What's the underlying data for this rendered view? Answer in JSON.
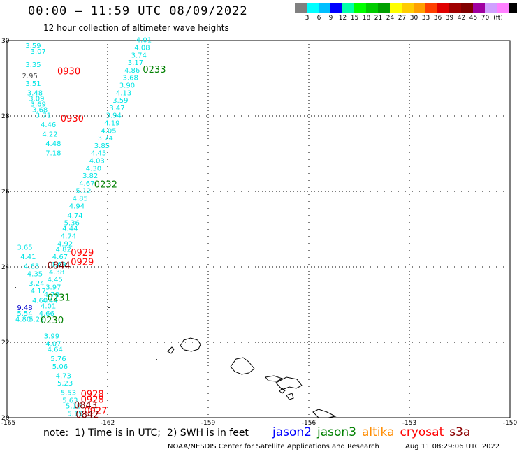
{
  "header": {
    "title": "00:00 – 11:59 UTC 08/09/2022",
    "subtitle": "12 hour collection of altimeter wave heights"
  },
  "legend": {
    "colors": [
      "#808080",
      "#00ffff",
      "#00bfff",
      "#0000ff",
      "#00ffaa",
      "#00ff00",
      "#00cc00",
      "#00a000",
      "#ffff00",
      "#ffcc00",
      "#ffa000",
      "#ff4000",
      "#e00000",
      "#a00000",
      "#800000",
      "#a000a0",
      "#d0a0ff",
      "#ff80ff",
      "#000000"
    ],
    "labels": [
      "3",
      "6",
      "9",
      "12",
      "15",
      "18",
      "21",
      "24",
      "27",
      "30",
      "33",
      "36",
      "39",
      "42",
      "45",
      "70",
      "(ft)"
    ]
  },
  "footer": {
    "note": "note:  1) Time is in UTC;  2) SWH is in feet",
    "satellites": [
      {
        "name": "jason2",
        "color": "#0000ff"
      },
      {
        "name": "jason3",
        "color": "#008000"
      },
      {
        "name": "altika",
        "color": "#ff8c00"
      },
      {
        "name": "cryosat",
        "color": "#ff0000"
      },
      {
        "name": "s3a",
        "color": "#8b0000"
      }
    ],
    "credit": "NOAA/NESDIS Center for Satellite Applications and Research",
    "timestamp": "Aug 11 08:29:06 UTC 2022"
  },
  "chart_data": {
    "type": "scatter",
    "xlim": [
      -165,
      -150
    ],
    "ylim": [
      20,
      30
    ],
    "xticks": [
      "-165",
      "-162",
      "-159",
      "-156",
      "-153",
      "-150"
    ],
    "yticks": [
      "20",
      "22",
      "24",
      "26",
      "28",
      "30"
    ],
    "grid": true,
    "track_jason3_0233": {
      "color": "#00e5e5",
      "lon": [
        -161.15,
        -161.2,
        -161.3,
        -161.4,
        -161.5,
        -161.55,
        -161.65,
        -161.75,
        -161.85,
        -161.95,
        -162.05,
        -162.1,
        -162.2,
        -162.3,
        -162.4,
        -162.5,
        -162.55,
        -162.65,
        -162.75,
        -162.85,
        -162.95,
        -163.05,
        -163.15
      ],
      "lat": [
        29.95,
        29.75,
        29.55,
        29.35,
        29.15,
        28.95,
        28.75,
        28.55,
        28.35,
        28.15,
        27.95,
        27.75,
        27.55,
        27.35,
        27.15,
        26.95,
        26.75,
        26.55,
        26.35,
        26.15,
        25.95,
        25.75,
        25.55
      ],
      "values": [
        "4.01",
        "4.08",
        "3.74",
        "3.17",
        "4.86",
        "3.68",
        "3.90",
        "4.13",
        "3.59",
        "3.47",
        "3.94",
        "4.19",
        "4.05",
        "3.74",
        "3.85",
        "4.45",
        "4.03",
        "4.30",
        "3.82",
        "4.67",
        "5.12",
        "4.85",
        "4.94"
      ]
    },
    "track_jason3_0231": {
      "color": "#00e5e5",
      "lon": [
        -163.2,
        -163.3,
        -163.35,
        -163.4,
        -163.5,
        -163.55,
        -163.65,
        -163.7,
        -163.75,
        -163.8,
        -163.85,
        -163.9,
        -163.95,
        -164.0,
        -164.05
      ],
      "lat": [
        25.3,
        25.1,
        24.95,
        24.75,
        24.55,
        24.4,
        24.2,
        24.0,
        23.8,
        23.6,
        23.4,
        23.2,
        23.05,
        22.9,
        22.7
      ],
      "values": [
        "4.74",
        "5.36",
        "4.44",
        "4.74",
        "4.92",
        "4.82",
        "4.67",
        "4.69",
        "4.38",
        "4.45",
        "3.97",
        "4.78",
        "4.44",
        "4.01",
        "4.66"
      ]
    },
    "track_jason3_0230": {
      "color": "#00e5e5",
      "lon": [
        -163.9,
        -163.85,
        -163.8,
        -163.7,
        -163.65,
        -163.55,
        -163.5,
        -163.4,
        -163.35,
        -163.25,
        -163.2
      ],
      "lat": [
        22.1,
        21.9,
        21.75,
        21.5,
        21.3,
        21.05,
        20.85,
        20.6,
        20.4,
        20.25,
        20.05
      ],
      "values": [
        "3.99",
        "4.07",
        "4.64",
        "5.76",
        "5.06",
        "4.73",
        "5.23",
        "5.53",
        "5.63",
        "5.10",
        "5.19"
      ]
    },
    "track_west": {
      "color": "#00e5e5",
      "lon": [
        -164.45,
        -164.3,
        -164.45,
        -164.45,
        -164.4,
        -164.35,
        -164.3,
        -164.25,
        -164.15,
        -164.0,
        -163.95,
        -163.85,
        -163.85,
        -164.7,
        -164.6,
        -164.5,
        -164.4,
        -164.35,
        -164.3,
        -164.25,
        -164.35
      ],
      "lat": [
        29.8,
        29.65,
        29.3,
        28.8,
        28.55,
        28.4,
        28.25,
        28.1,
        27.95,
        27.7,
        27.45,
        27.2,
        26.95,
        24.45,
        24.2,
        23.95,
        23.75,
        23.5,
        23.3,
        23.05,
        22.55
      ],
      "values": [
        "3.59",
        "3.07",
        "3.35",
        "3.51",
        "3.48",
        "3.09",
        "3.69",
        "3.68",
        "3.71",
        "4.46",
        "4.22",
        "4.48",
        "7.18",
        "3.65",
        "4.41",
        "4.63",
        "4.35",
        "3.24",
        "4.17",
        "4.60",
        "5.22"
      ]
    },
    "labels_time": [
      {
        "text": "0930",
        "color": "#ff0000",
        "lon": -163.5,
        "lat": 29.1
      },
      {
        "text": "0930",
        "color": "#ff0000",
        "lon": -163.4,
        "lat": 27.85
      },
      {
        "text": "0233",
        "color": "#008000",
        "lon": -160.95,
        "lat": 29.15
      },
      {
        "text": "0232",
        "color": "#008000",
        "lon": -162.4,
        "lat": 26.1
      },
      {
        "text": "0929",
        "color": "#ff0000",
        "lon": -163.1,
        "lat": 24.3
      },
      {
        "text": "0929",
        "color": "#ff0000",
        "lon": -163.1,
        "lat": 24.05
      },
      {
        "text": "0844",
        "color": "#800000",
        "lon": -163.8,
        "lat": 23.95
      },
      {
        "text": "0231",
        "color": "#008000",
        "lon": -163.8,
        "lat": 23.1
      },
      {
        "text": "0230",
        "color": "#008000",
        "lon": -164.0,
        "lat": 22.5
      },
      {
        "text": "0928",
        "color": "#ff0000",
        "lon": -162.8,
        "lat": 20.55
      },
      {
        "text": "0928",
        "color": "#ff0000",
        "lon": -162.8,
        "lat": 20.4
      },
      {
        "text": "0843",
        "color": "#800000",
        "lon": -163.0,
        "lat": 20.25
      },
      {
        "text": "0927",
        "color": "#ff0000",
        "lon": -162.7,
        "lat": 20.1
      },
      {
        "text": "0842",
        "color": "#800000",
        "lon": -162.95,
        "lat": 20.0
      }
    ],
    "stray_values": [
      {
        "text": "2.95",
        "color": "#505050",
        "lon": -164.55,
        "lat": 29.0
      },
      {
        "text": "9.48",
        "color": "#0000cc",
        "lon": -164.7,
        "lat": 22.85
      },
      {
        "text": "5.54",
        "color": "#00e5e5",
        "lon": -164.7,
        "lat": 22.7
      },
      {
        "text": "4.80",
        "color": "#00e5e5",
        "lon": -164.75,
        "lat": 22.55
      }
    ]
  }
}
